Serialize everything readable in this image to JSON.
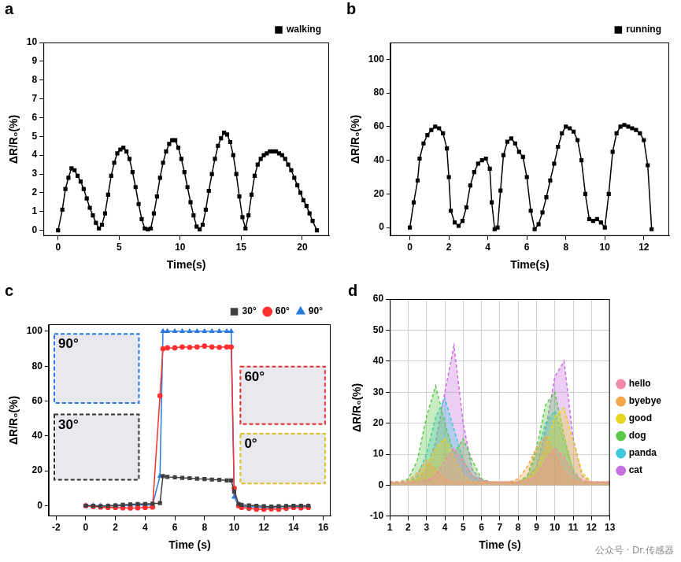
{
  "chart_data": [
    {
      "type": "line",
      "panel": "a",
      "x_label": "Time(s)",
      "y_label": "ΔR/R₀(%)",
      "xlim": [
        -1.2,
        22.2
      ],
      "xticks": [
        0,
        5,
        10,
        15,
        20
      ],
      "ylim": [
        -0.3,
        10
      ],
      "yticks": [
        0,
        1,
        2,
        3,
        4,
        5,
        6,
        7,
        8,
        9,
        10
      ],
      "grid": false,
      "legend": "top-right",
      "x": [
        0,
        0.35,
        0.6,
        0.85,
        1.1,
        1.35,
        1.6,
        1.85,
        2.1,
        2.35,
        2.6,
        2.85,
        3.1,
        3.35,
        3.6,
        3.85,
        4.1,
        4.35,
        4.6,
        4.85,
        5.1,
        5.35,
        5.6,
        5.85,
        6.1,
        6.35,
        6.6,
        6.85,
        7.1,
        7.35,
        7.6,
        7.85,
        8.1,
        8.35,
        8.6,
        8.85,
        9.1,
        9.35,
        9.6,
        9.85,
        10.1,
        10.35,
        10.6,
        10.85,
        11.1,
        11.35,
        11.6,
        11.85,
        12.1,
        12.35,
        12.6,
        12.85,
        13.1,
        13.35,
        13.6,
        13.85,
        14.1,
        14.35,
        14.6,
        14.85,
        15.1,
        15.35,
        15.6,
        15.85,
        16.1,
        16.35,
        16.6,
        16.85,
        17.1,
        17.35,
        17.6,
        17.85,
        18.1,
        18.35,
        18.6,
        18.85,
        19.1,
        19.35,
        19.6,
        19.85,
        20.1,
        20.35,
        20.6,
        20.85,
        21.2
      ],
      "series": [
        {
          "name": "walking",
          "color": "#000000",
          "marker": "square",
          "line_style": "solid",
          "values": [
            0,
            1.1,
            2.2,
            2.8,
            3.3,
            3.2,
            2.9,
            2.6,
            2.2,
            1.7,
            1.2,
            0.8,
            0.4,
            0.1,
            0.3,
            0.9,
            1.9,
            2.9,
            3.6,
            4.1,
            4.3,
            4.4,
            4.2,
            3.8,
            3.1,
            2.3,
            1.4,
            0.6,
            0.1,
            0.05,
            0.1,
            0.9,
            1.8,
            2.8,
            3.6,
            4.2,
            4.6,
            4.8,
            4.8,
            4.4,
            3.8,
            3.1,
            2.3,
            1.5,
            0.8,
            0.2,
            0.05,
            0.3,
            1.1,
            2.1,
            3.0,
            3.8,
            4.5,
            4.9,
            5.2,
            5.1,
            4.7,
            4.0,
            3.0,
            1.8,
            0.7,
            0.1,
            0.8,
            1.9,
            2.9,
            3.5,
            3.8,
            4.0,
            4.1,
            4.2,
            4.2,
            4.2,
            4.1,
            4.0,
            3.8,
            3.5,
            3.2,
            2.8,
            2.4,
            2.0,
            1.6,
            1.3,
            0.9,
            0.5,
            0
          ]
        }
      ]
    },
    {
      "type": "line",
      "panel": "b",
      "x_label": "Time(s)",
      "y_label": "ΔR/R₀(%)",
      "xlim": [
        -1,
        13.3
      ],
      "xticks": [
        0,
        2,
        4,
        6,
        8,
        10,
        12
      ],
      "ylim": [
        -5,
        110
      ],
      "yticks": [
        0,
        20,
        40,
        60,
        80,
        100
      ],
      "grid": false,
      "legend": "top-right",
      "x": [
        0,
        0.2,
        0.4,
        0.5,
        0.7,
        0.9,
        1.1,
        1.3,
        1.5,
        1.7,
        1.9,
        2.0,
        2.1,
        2.3,
        2.5,
        2.7,
        2.9,
        3.1,
        3.3,
        3.5,
        3.7,
        3.9,
        4.1,
        4.2,
        4.35,
        4.5,
        4.65,
        4.8,
        5.0,
        5.2,
        5.4,
        5.6,
        5.8,
        6.0,
        6.2,
        6.4,
        6.6,
        6.8,
        7.0,
        7.2,
        7.4,
        7.6,
        7.8,
        8.0,
        8.2,
        8.4,
        8.6,
        8.8,
        9.0,
        9.2,
        9.4,
        9.6,
        9.8,
        10.0,
        10.2,
        10.4,
        10.6,
        10.8,
        11.0,
        11.2,
        11.4,
        11.6,
        11.8,
        12.0,
        12.2,
        12.4
      ],
      "series": [
        {
          "name": "running",
          "color": "#000000",
          "marker": "square",
          "line_style": "solid",
          "values": [
            0,
            15,
            28,
            41,
            50,
            55,
            58,
            60,
            59,
            56,
            47,
            30,
            10,
            3,
            1,
            4,
            12,
            25,
            33,
            38,
            40,
            41,
            35,
            15,
            -1,
            0,
            22,
            43,
            51,
            53,
            50,
            45,
            42,
            30,
            10,
            -1,
            2,
            9,
            18,
            28,
            38,
            48,
            56,
            60,
            59,
            57,
            52,
            40,
            20,
            5,
            4,
            5,
            3,
            0,
            20,
            45,
            56,
            60,
            61,
            60,
            59,
            58,
            56,
            52,
            37,
            -1
          ]
        }
      ]
    },
    {
      "type": "line",
      "panel": "c",
      "x_label": "Time (s)",
      "y_label": "ΔR/R₀(%)",
      "xlim": [
        -2.5,
        16.5
      ],
      "xticks": [
        -2,
        0,
        2,
        4,
        6,
        8,
        10,
        12,
        14,
        16
      ],
      "ylim": [
        -6,
        104
      ],
      "yticks": [
        0,
        20,
        40,
        60,
        80,
        100
      ],
      "grid": false,
      "legend": "top-right",
      "annotations": [
        {
          "text": "90°",
          "color": "#2a7ae0"
        },
        {
          "text": "30°",
          "color": "#333333"
        },
        {
          "text": "60°",
          "color": "#e03030"
        },
        {
          "text": "0°",
          "color": "#d4c020"
        }
      ],
      "x": [
        0,
        0.5,
        1,
        1.5,
        2,
        2.5,
        3,
        3.5,
        4,
        4.5,
        5.0,
        5.2,
        5.5,
        6,
        6.5,
        7,
        7.5,
        8,
        8.5,
        9,
        9.5,
        9.8,
        10.0,
        10.3,
        10.5,
        11,
        11.5,
        12,
        12.5,
        13,
        13.5,
        14,
        14.5,
        15
      ],
      "series": [
        {
          "name": "30°",
          "color": "#404040",
          "marker": "square",
          "line_style": "solid",
          "values": [
            0,
            0,
            -0.3,
            0,
            0.2,
            0.5,
            0.8,
            1,
            1,
            1.2,
            1.5,
            17,
            16.5,
            16.3,
            16,
            15.8,
            15.5,
            15.3,
            15,
            14.8,
            14.5,
            14.5,
            8,
            1,
            0.5,
            0.2,
            0,
            -0.3,
            -0.5,
            -0.3,
            -0.2,
            0,
            0,
            0
          ]
        },
        {
          "name": "60°",
          "color": "#ff3030",
          "marker": "circle",
          "line_style": "solid",
          "values": [
            0,
            -0.5,
            -0.8,
            -1,
            -1,
            -1.2,
            -1.3,
            -1.2,
            -1,
            -0.8,
            63,
            90,
            90.5,
            90.5,
            91,
            90.8,
            91,
            91.5,
            91,
            90.8,
            91,
            91,
            10,
            0,
            -1,
            -1.5,
            -2,
            -2,
            -1.8,
            -2,
            -1.5,
            -1,
            -1.2,
            -1
          ]
        },
        {
          "name": "90°",
          "color": "#2a7ae0",
          "marker": "triangle",
          "line_style": "solid",
          "values": [
            0,
            0,
            0,
            -0.2,
            0,
            0,
            0.3,
            0.5,
            0.5,
            0.5,
            17,
            100,
            100,
            100,
            100,
            100,
            100,
            100,
            100,
            100,
            100,
            100,
            5,
            0,
            -0.5,
            -0.5,
            -0.8,
            -1,
            -1,
            -0.8,
            -0.5,
            -0.5,
            -0.3,
            -0.3
          ]
        }
      ]
    },
    {
      "type": "line",
      "panel": "d",
      "x_label": "Time (s)",
      "y_label": "ΔR/R₀(%)",
      "xlim": [
        1,
        13
      ],
      "xticks": [
        1,
        2,
        3,
        4,
        5,
        6,
        7,
        8,
        9,
        10,
        11,
        12,
        13
      ],
      "ylim": [
        -10,
        60
      ],
      "yticks": [
        -10,
        0,
        10,
        20,
        30,
        40,
        50,
        60
      ],
      "grid": true,
      "legend": "right",
      "annotations": [
        {
          "text": "公众号 · Dr.传感器",
          "color": "#8a8a8a"
        }
      ],
      "x": [
        1,
        1.5,
        2,
        2.5,
        3,
        3.5,
        4,
        4.5,
        5,
        5.5,
        6,
        6.5,
        7,
        7.5,
        8,
        8.5,
        9,
        9.5,
        10,
        10.5,
        11,
        11.5,
        12,
        12.5,
        13
      ],
      "series": [
        {
          "name": "hello",
          "color": "#f08aa8",
          "marker": "none",
          "line_style": "dashed",
          "values": [
            1,
            1,
            1,
            1,
            1.5,
            3,
            8,
            12,
            8,
            3,
            1.5,
            1,
            1,
            1,
            1,
            1.5,
            3,
            8,
            12,
            9,
            4,
            1.5,
            1,
            1,
            1
          ]
        },
        {
          "name": "byebye",
          "color": "#f5a54a",
          "marker": "none",
          "line_style": "dashed",
          "values": [
            1,
            1,
            1.5,
            4,
            8,
            5,
            2,
            1,
            1,
            1,
            1,
            1,
            1,
            1,
            2,
            6,
            12,
            16,
            10,
            4,
            1.5,
            1,
            1,
            1,
            1
          ]
        },
        {
          "name": "good",
          "color": "#e6d420",
          "marker": "none",
          "line_style": "dashed",
          "values": [
            1,
            1,
            1,
            2,
            6,
            12,
            15,
            9,
            3,
            1,
            1,
            1,
            1,
            1,
            1,
            2,
            5,
            12,
            22,
            25,
            14,
            4,
            1,
            1,
            1
          ]
        },
        {
          "name": "dog",
          "color": "#5cc84a",
          "marker": "none",
          "line_style": "dashed",
          "values": [
            1,
            1,
            2,
            8,
            22,
            32,
            20,
            10,
            15,
            8,
            2,
            1,
            1,
            1,
            1,
            3,
            12,
            26,
            30,
            16,
            4,
            1,
            1,
            1,
            1
          ]
        },
        {
          "name": "panda",
          "color": "#3ec8d8",
          "marker": "none",
          "line_style": "dashed",
          "values": [
            1,
            1,
            1,
            3,
            10,
            22,
            28,
            18,
            8,
            3,
            1,
            1,
            1,
            1,
            1,
            3,
            10,
            20,
            24,
            14,
            5,
            1,
            1,
            1,
            1
          ]
        },
        {
          "name": "cat",
          "color": "#c870e0",
          "marker": "none",
          "line_style": "dashed",
          "values": [
            1,
            1,
            1,
            2,
            5,
            14,
            30,
            45,
            20,
            5,
            1.5,
            1,
            1,
            1,
            1,
            2,
            6,
            18,
            35,
            40,
            15,
            3,
            1,
            1,
            1
          ]
        }
      ]
    }
  ]
}
